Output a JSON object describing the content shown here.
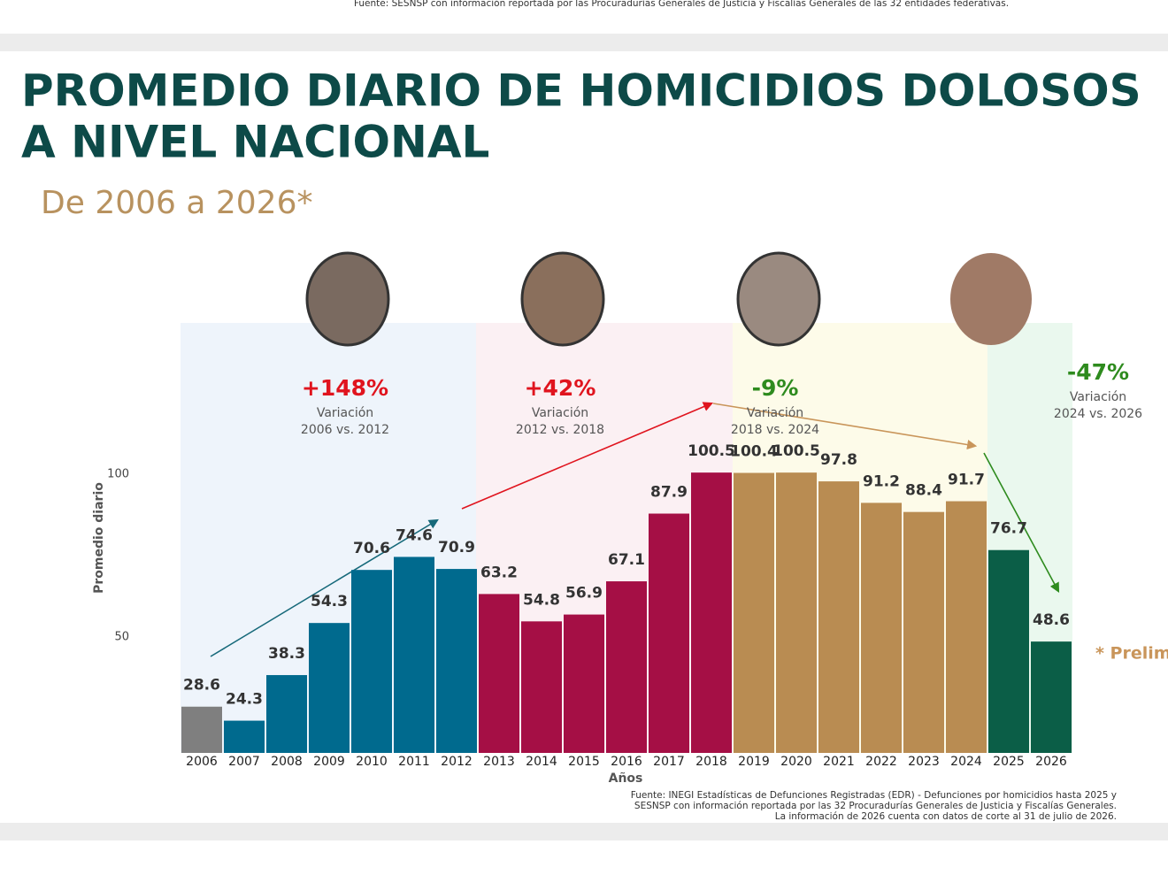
{
  "top_source": "Fuente: SESNSP con información reportada por las Procuradurías Generales de Justicia y Fiscalías Generales de las 32 entidades federativas.",
  "chart_data": {
    "type": "bar",
    "title": [
      "PROMEDIO DIARIO DE HOMICIDIOS DOLOSOS",
      "A NIVEL NACIONAL"
    ],
    "subtitle": "De 2006 a 2026*",
    "y_label": "Promedio diario",
    "x_label": "Años",
    "categories": [
      "2006",
      "2007",
      "2008",
      "2009",
      "2010",
      "2011",
      "2012",
      "2013",
      "2014",
      "2015",
      "2016",
      "2017",
      "2018",
      "2019",
      "2020",
      "2021",
      "2022",
      "2023",
      "2024",
      "2025",
      "2026"
    ],
    "values": [
      28.6,
      24.3,
      38.3,
      54.3,
      70.6,
      74.6,
      70.9,
      63.2,
      54.8,
      56.9,
      67.1,
      87.9,
      100.5,
      100.4,
      100.5,
      97.8,
      91.2,
      88.4,
      91.7,
      76.7,
      48.6
    ],
    "colors": [
      "#7f7f7f",
      "#006a8e",
      "#006a8e",
      "#006a8e",
      "#006a8e",
      "#006a8e",
      "#006a8e",
      "#a50f45",
      "#a50f45",
      "#a50f45",
      "#a50f45",
      "#a50f45",
      "#a50f45",
      "#b98c52",
      "#b98c52",
      "#b98c52",
      "#b98c52",
      "#b98c52",
      "#b98c52",
      "#0b5e47",
      "#0b5e47"
    ],
    "ylim": [
      14.4,
      146
    ],
    "yticks": [
      50,
      100
    ],
    "periods": [
      {
        "change": "+148%",
        "label": "Variación",
        "range": "2006 vs. 2012",
        "color": "#e0141e"
      },
      {
        "change": "+42%",
        "label": "Variación",
        "range": "2012 vs. 2018",
        "color": "#e0141e"
      },
      {
        "change": "-9%",
        "label": "Variación",
        "range": "2018 vs. 2024",
        "color": "#2e8b1e"
      },
      {
        "change": "-47%",
        "label": "Variación",
        "range": "2024 vs. 2026",
        "color": "#2e8b1e"
      }
    ],
    "note": "* Prelim",
    "source": [
      "Fuente: INEGI Estadísticas de Defunciones Registradas (EDR) - Defunciones por homicidios hasta 2025 y",
      "SESNSP con información reportada por las 32 Procuradurías Generales de Justicia y Fiscalías Generales.",
      "La información de 2026 cuenta con datos de corte al 31 de julio de 2026."
    ]
  }
}
